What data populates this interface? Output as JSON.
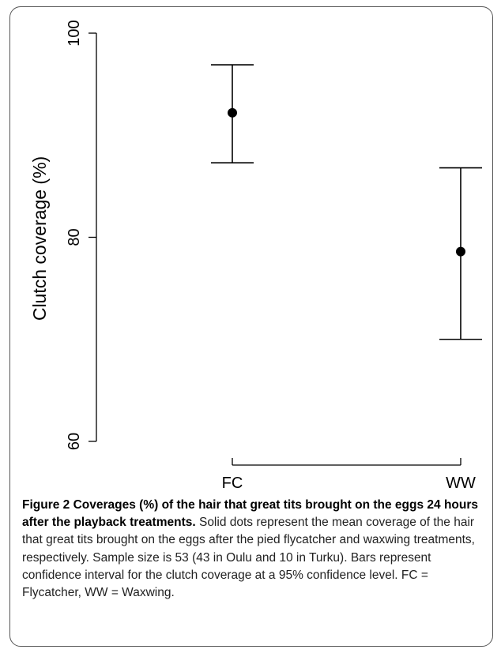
{
  "chart_data": {
    "type": "errorbar",
    "categories": [
      "FC",
      "WW"
    ],
    "series": [
      {
        "points": [
          {
            "category": "FC",
            "mean": 92.2,
            "lower": 87.3,
            "upper": 96.9
          },
          {
            "category": "WW",
            "mean": 78.6,
            "lower": 70.0,
            "upper": 86.8
          }
        ]
      }
    ],
    "ylabel": "Clutch coverage (%)",
    "xlabel": "",
    "ylim": [
      60,
      100
    ],
    "yticks": [
      60,
      80,
      100
    ],
    "ytick_labels": [
      "60",
      "80",
      "100"
    ],
    "grid": false,
    "legend": "none",
    "colors": {
      "marks": "#000000"
    }
  },
  "caption": {
    "title": "Figure 2 Coverages (%) of the hair that great tits brought on the eggs 24 hours after the playback treatments.",
    "body": " Solid dots represent the mean coverage of the hair that great tits brought on the eggs after the pied flycatcher and waxwing treatments, respectively. Sample size is 53 (43 in Oulu and 10 in Turku). Bars represent confidence interval for the clutch coverage at a 95% confidence level. FC = Flycatcher, WW = Waxwing."
  }
}
